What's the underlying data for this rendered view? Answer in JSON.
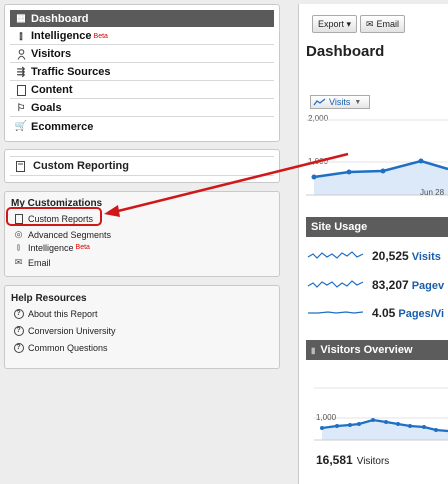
{
  "nav": {
    "items": [
      {
        "label": "Dashboard",
        "icon": "dashboard-icon",
        "active": true
      },
      {
        "label": "Intelligence",
        "icon": "intelligence-icon",
        "beta": "Beta"
      },
      {
        "label": "Visitors",
        "icon": "visitors-icon"
      },
      {
        "label": "Traffic Sources",
        "icon": "traffic-sources-icon"
      },
      {
        "label": "Content",
        "icon": "content-icon"
      },
      {
        "label": "Goals",
        "icon": "goals-flag-icon"
      },
      {
        "label": "Ecommerce",
        "icon": "ecommerce-cart-icon"
      }
    ]
  },
  "custom_reporting": {
    "label": "Custom Reporting"
  },
  "my_customizations": {
    "title": "My Customizations",
    "items": [
      {
        "label": "Custom Reports"
      },
      {
        "label": "Advanced Segments"
      },
      {
        "label": "Intelligence",
        "beta": "Beta"
      },
      {
        "label": "Email"
      }
    ]
  },
  "help": {
    "title": "Help Resources",
    "items": [
      {
        "label": "About this Report"
      },
      {
        "label": "Conversion University"
      },
      {
        "label": "Common Questions"
      }
    ]
  },
  "toolbar": {
    "export_label": "Export ▾",
    "email_label": "Email"
  },
  "dashboard": {
    "title": "Dashboard",
    "metric_selector": "Visits",
    "chart": {
      "y_top": "2,000",
      "y_mid": "1,000",
      "x_label": "Jun 28"
    }
  },
  "site_usage": {
    "title": "Site Usage",
    "metrics": [
      {
        "value": "20,525",
        "label": "Visits"
      },
      {
        "value": "83,207",
        "label": "Pagev"
      },
      {
        "value": "4.05",
        "label": "Pages/Vi"
      }
    ]
  },
  "visitors_overview": {
    "title": "Visitors Overview",
    "chart": {
      "y_mid": "1,000"
    },
    "total": {
      "value": "16,581",
      "label": "Visitors"
    }
  },
  "colors": {
    "line": "#1f6fc4",
    "fill": "#dbe9f8",
    "arrow": "#d01818",
    "header": "#5c5c5c"
  }
}
